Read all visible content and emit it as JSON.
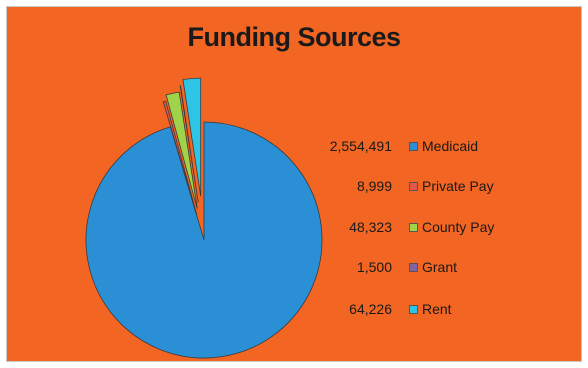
{
  "chart_data": {
    "type": "pie",
    "title": "Funding Sources",
    "categories": [
      "Medicaid",
      "Private Pay",
      "County Pay",
      "Grant",
      "Rent"
    ],
    "values": [
      2554491,
      8999,
      48323,
      1500,
      64226
    ],
    "value_labels": [
      "2,554,491",
      "8,999",
      "48,323",
      "1,500",
      "64,226"
    ],
    "colors": [
      "#2b8fd6",
      "#e2574c",
      "#9fd44a",
      "#8064a2",
      "#2ec4e6"
    ],
    "exploded_categories": [
      "Private Pay",
      "County Pay",
      "Grant",
      "Rent"
    ],
    "legend_position": "right",
    "xlabel": "",
    "ylabel": ""
  },
  "background_color": "#f26522"
}
